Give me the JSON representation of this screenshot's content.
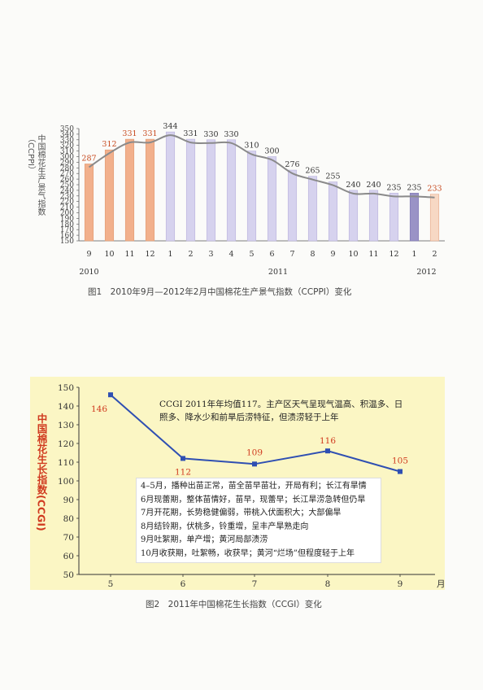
{
  "chart_data": [
    {
      "type": "bar",
      "title": "",
      "ylabel": "中国棉花生产景气指数（CCPPI）",
      "ylim": [
        150,
        350
      ],
      "yticks": [
        150,
        160,
        170,
        180,
        190,
        200,
        210,
        220,
        230,
        240,
        250,
        260,
        270,
        280,
        290,
        300,
        310,
        320,
        330,
        340,
        350
      ],
      "categories": [
        "9",
        "10",
        "11",
        "12",
        "1",
        "2",
        "3",
        "4",
        "5",
        "6",
        "7",
        "8",
        "9",
        "10",
        "11",
        "12",
        "1",
        "2"
      ],
      "year_labels": [
        "2010",
        "2011",
        "2012"
      ],
      "values": [
        287,
        312,
        331,
        331,
        344,
        331,
        330,
        330,
        310,
        300,
        276,
        265,
        255,
        240,
        240,
        235,
        235,
        233
      ],
      "value_labels": [
        "287",
        "312",
        "331",
        "331",
        "344",
        "331",
        "330",
        "330",
        "310",
        "300",
        "276",
        "265",
        "255",
        "240",
        "240",
        "235",
        "235",
        "233"
      ],
      "colors": {
        "bar_2010": "#f2b08c",
        "bar_2011": "#d6d2ee",
        "bar_jan2012": "#9a93c6",
        "bar_feb2012": "#f7d8c4",
        "label_red": "#c7491e",
        "label_dark": "#333333",
        "trend": "#8a8a8a"
      },
      "grid": false
    },
    {
      "type": "line",
      "ylabel": "中国棉花生长指数(CCGI)",
      "ylim": [
        50,
        150
      ],
      "yticks": [
        "50",
        "60",
        "70",
        "80",
        "90",
        "100",
        "110",
        "120",
        "130",
        "140",
        "150"
      ],
      "categories": [
        "5",
        "6",
        "7",
        "8",
        "9"
      ],
      "x_unit": "月",
      "values": [
        146,
        112,
        109,
        116,
        105
      ],
      "value_labels": [
        "146",
        "112",
        "109",
        "116",
        "105"
      ],
      "colors": {
        "line": "#2f4fb2",
        "label": "#d03a1f",
        "background": "#fbf6c4"
      },
      "grid": false
    }
  ],
  "figure1": {
    "caption": "图1　2010年9月—2012年2月中国棉花生产景气指数（CCPPI）变化"
  },
  "figure2": {
    "caption": "图2　2011年中国棉花生长指数（CCGI）变化",
    "summary": "CCGI 2011年年均值117。主产区天气呈现气温高、积温多、日照多、降水少和前旱后涝特征，但渍涝轻于上年",
    "notes": [
      "4–5月，播种出苗正常，苗全苗早苗壮，开局有利；长江有旱情",
      "6月现蕾期，整体苗情好，苗早，现蕾早；长江旱涝急转但仍旱",
      "7月开花期，长势稳健偏弱，带桃入伏面积大；大部偏旱",
      "8月结铃期，伏桃多，铃重增，呈丰产旱熟走向",
      "9月吐絮期，单产增；黄河局部渍涝",
      "10月收获期，吐絮畅，收获早；黄河“烂场”但程度轻于上年"
    ]
  }
}
